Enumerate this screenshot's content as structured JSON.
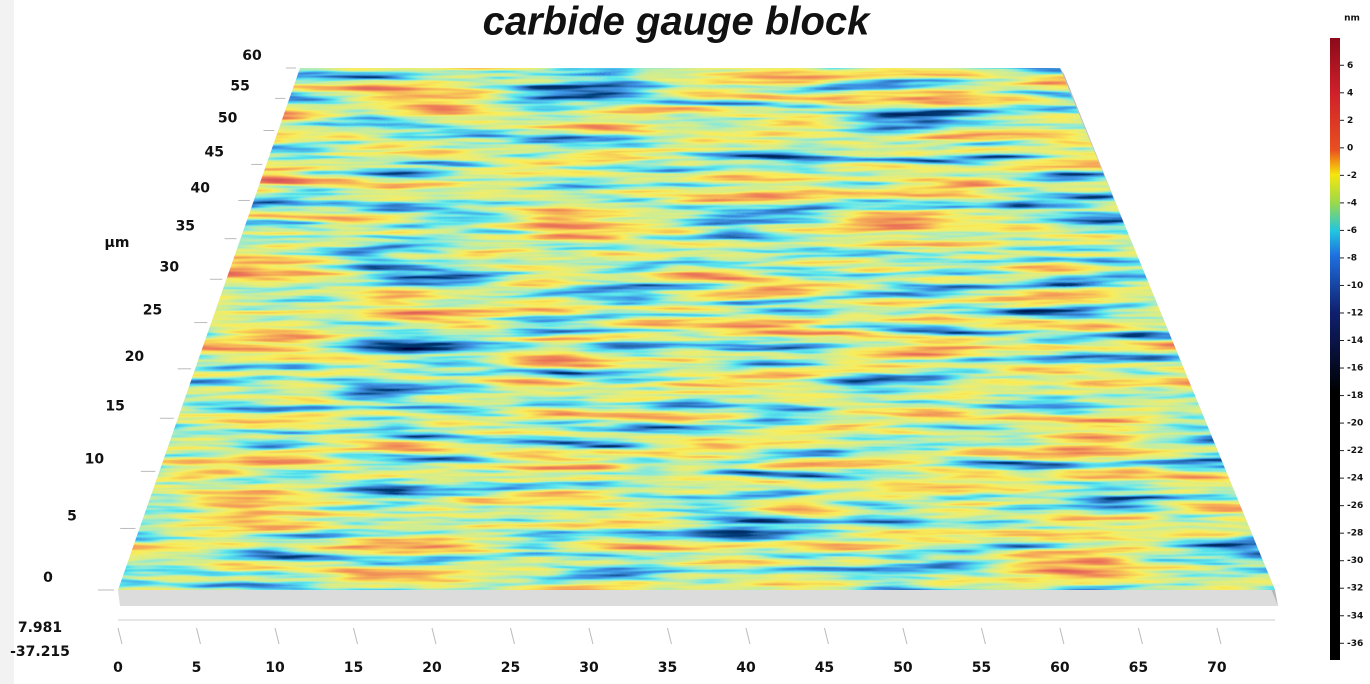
{
  "chart_data": {
    "type": "surface",
    "title": "carbide gauge block",
    "xlim": [
      0,
      73.7
    ],
    "xticks": [
      0,
      5,
      10,
      15,
      20,
      25,
      30,
      35,
      40,
      45,
      50,
      55,
      60,
      65,
      70
    ],
    "ylim": [
      0,
      60
    ],
    "yticks": [
      0,
      5,
      10,
      15,
      20,
      25,
      30,
      35,
      40,
      45,
      50,
      55,
      60
    ],
    "y_label": "µm",
    "zlim": [
      -37.215,
      7.981
    ],
    "colorbar": {
      "label": "nm",
      "ticks": [
        6,
        4,
        2,
        0,
        -2,
        -4,
        -6,
        -8,
        -10,
        -12,
        -14,
        -16,
        -18,
        -20,
        -22,
        -24,
        -26,
        -28,
        -30,
        -32,
        -34,
        -36
      ]
    }
  }
}
